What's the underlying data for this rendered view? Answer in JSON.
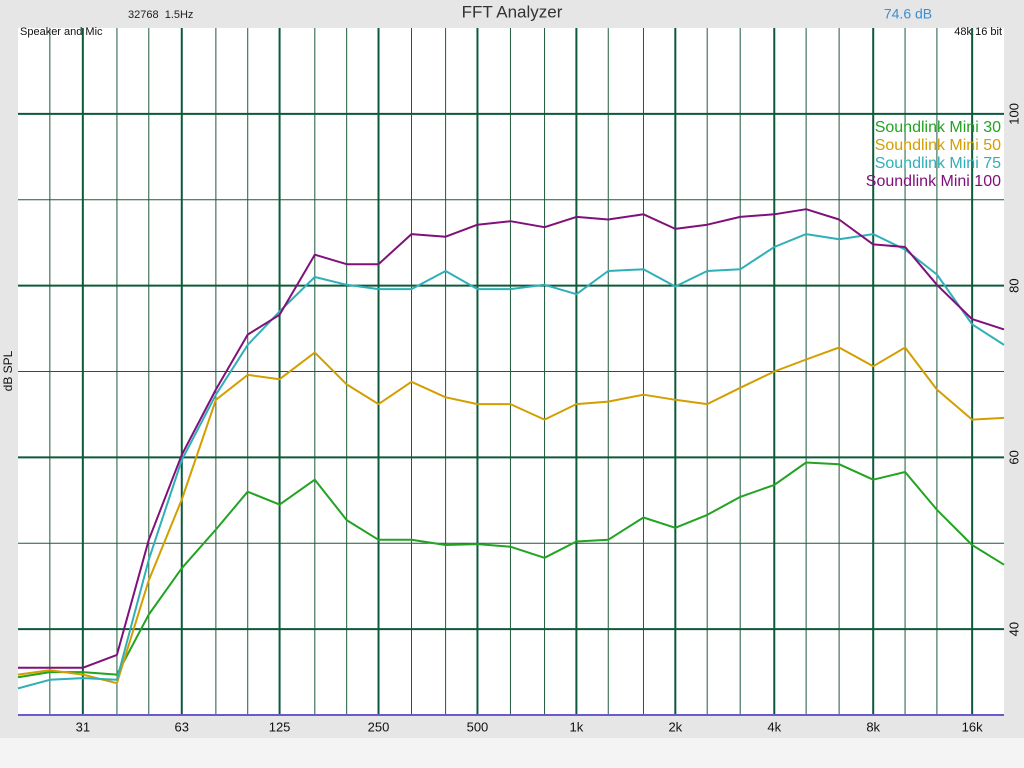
{
  "chart_data": {
    "type": "line",
    "title": "FFT Analyzer",
    "fft_info": "32768  1.5Hz",
    "level": "74.6 dB",
    "input": "Speaker and Mic",
    "format": "48k 16 bit",
    "ylabel": "dB SPL",
    "log_x": true,
    "grid": true,
    "legend": "top-right",
    "xlim": [
      20,
      20000
    ],
    "ylim": [
      30,
      110
    ],
    "xticks": [
      {
        "value": 31.5,
        "label": "31"
      },
      63,
      125,
      250,
      500,
      {
        "value": 1000,
        "label": "1k"
      },
      {
        "value": 2000,
        "label": "2k"
      },
      {
        "value": 4000,
        "label": "4k"
      },
      {
        "value": 8000,
        "label": "8k"
      },
      {
        "value": 16000,
        "label": "16k"
      }
    ],
    "xgrid": [
      25,
      40,
      50,
      80,
      100,
      160,
      200,
      315,
      400,
      630,
      800,
      1250,
      1600,
      2500,
      3150,
      5000,
      6300,
      10000,
      12500
    ],
    "yticks": [
      40,
      60,
      80,
      100
    ],
    "ygrid": [
      50,
      70,
      90
    ],
    "x": [
      20,
      25,
      31.5,
      40,
      50,
      63,
      80,
      100,
      125,
      160,
      200,
      250,
      315,
      400,
      500,
      630,
      800,
      1000,
      1250,
      1600,
      2000,
      2500,
      3150,
      4000,
      5000,
      6300,
      8000,
      10000,
      12500,
      16000,
      20000
    ],
    "series": [
      {
        "name": "Soundlink Mini 30",
        "color": "#22a322",
        "values": [
          34.4,
          35.0,
          35.0,
          34.7,
          41.7,
          47.1,
          51.6,
          56.0,
          54.5,
          57.4,
          52.7,
          50.4,
          50.4,
          49.8,
          49.9,
          49.6,
          48.3,
          50.2,
          50.4,
          53.0,
          51.8,
          53.3,
          55.4,
          56.8,
          59.4,
          59.2,
          57.4,
          58.3,
          53.9,
          49.8,
          47.5
        ]
      },
      {
        "name": "Soundlink Mini 50",
        "color": "#d39e00",
        "values": [
          34.7,
          35.2,
          34.7,
          33.7,
          45.7,
          55.1,
          66.7,
          69.6,
          69.1,
          72.2,
          68.5,
          66.2,
          68.8,
          67.0,
          66.2,
          66.2,
          64.4,
          66.2,
          66.5,
          67.3,
          66.7,
          66.2,
          68.1,
          70.0,
          71.4,
          72.8,
          70.6,
          72.8,
          67.9,
          64.4,
          64.6
        ]
      },
      {
        "name": "Soundlink Mini 75",
        "color": "#2fb0b8",
        "values": [
          33.1,
          34.1,
          34.3,
          34.1,
          48.1,
          59.7,
          67.3,
          73.1,
          77.0,
          81.0,
          80.1,
          79.6,
          79.6,
          81.7,
          79.6,
          79.6,
          80.1,
          79.0,
          81.7,
          81.9,
          79.9,
          81.7,
          81.9,
          84.5,
          86.0,
          85.4,
          86.0,
          84.2,
          81.3,
          75.5,
          73.1
        ]
      },
      {
        "name": "Soundlink Mini 100",
        "color": "#80107a",
        "values": [
          35.5,
          35.5,
          35.5,
          37.0,
          50.4,
          60.3,
          67.9,
          74.3,
          76.6,
          83.6,
          82.5,
          82.5,
          86.0,
          85.7,
          87.1,
          87.5,
          86.8,
          88.0,
          87.7,
          88.3,
          86.6,
          87.1,
          88.0,
          88.3,
          88.9,
          87.7,
          84.8,
          84.5,
          80.1,
          76.1,
          74.9
        ]
      }
    ]
  }
}
